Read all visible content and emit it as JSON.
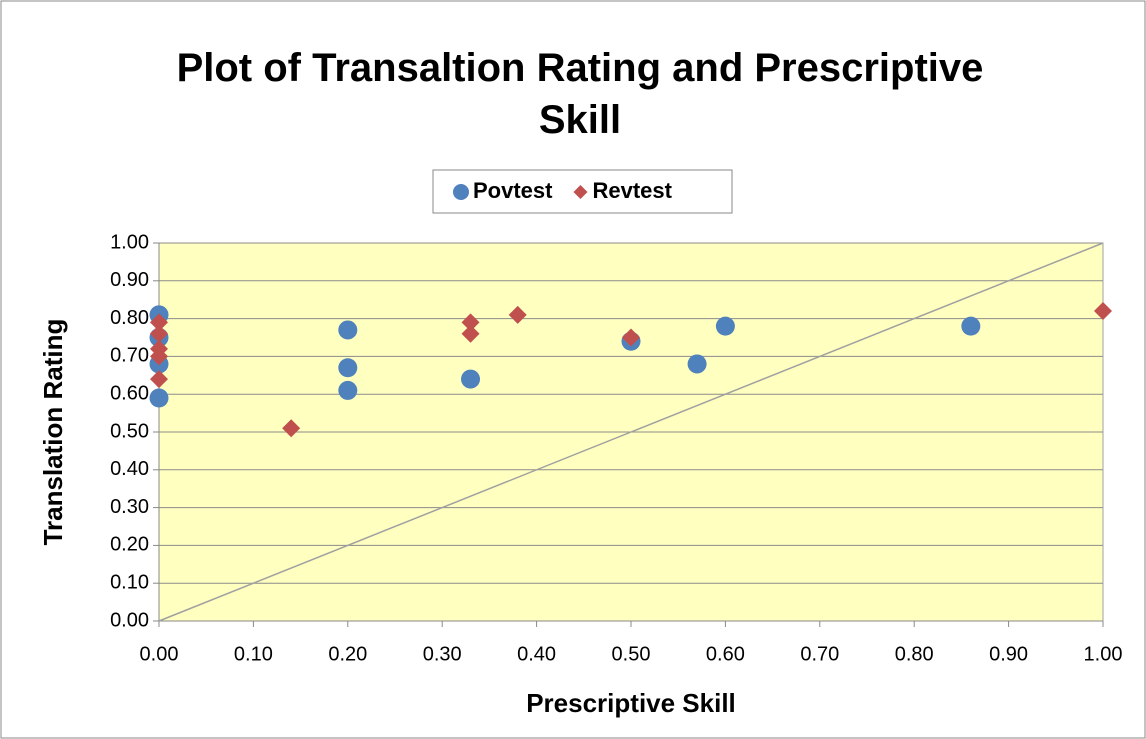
{
  "chart_data": {
    "type": "scatter",
    "title": "Plot of Transaltion Rating and Prescriptive Skill",
    "xlabel": "Prescriptive Skill",
    "ylabel": "Translation Rating",
    "xlim": [
      0,
      1
    ],
    "ylim": [
      0,
      1
    ],
    "xticks": [
      {
        "value": 0,
        "label": "0.00"
      },
      {
        "value": 0.1,
        "label": "0.10"
      },
      {
        "value": 0.2,
        "label": "0.20"
      },
      {
        "value": 0.3,
        "label": "0.30"
      },
      {
        "value": 0.4,
        "label": "0.40"
      },
      {
        "value": 0.5,
        "label": "0.50"
      },
      {
        "value": 0.6,
        "label": "0.60"
      },
      {
        "value": 0.7,
        "label": "0.70"
      },
      {
        "value": 0.8,
        "label": "0.80"
      },
      {
        "value": 0.9,
        "label": "0.90"
      },
      {
        "value": 1,
        "label": "1.00"
      }
    ],
    "yticks": [
      {
        "value": 0,
        "label": "0.00"
      },
      {
        "value": 0.1,
        "label": "0.10"
      },
      {
        "value": 0.2,
        "label": "0.20"
      },
      {
        "value": 0.3,
        "label": "0.30"
      },
      {
        "value": 0.4,
        "label": "0.40"
      },
      {
        "value": 0.5,
        "label": "0.50"
      },
      {
        "value": 0.6,
        "label": "0.60"
      },
      {
        "value": 0.7,
        "label": "0.70"
      },
      {
        "value": 0.8,
        "label": "0.80"
      },
      {
        "value": 0.9,
        "label": "0.90"
      },
      {
        "value": 1,
        "label": "1.00"
      }
    ],
    "grid": true,
    "legend": "top",
    "series": [
      {
        "name": "Povtest",
        "color": "#4f81bd",
        "marker": "circle",
        "x": [
          0,
          0,
          0,
          0,
          0.2,
          0.2,
          0.2,
          0.33,
          0.5,
          0.57,
          0.6,
          0.86
        ],
        "values": [
          0.81,
          0.75,
          0.68,
          0.59,
          0.77,
          0.67,
          0.61,
          0.64,
          0.74,
          0.68,
          0.78,
          0.78
        ]
      },
      {
        "name": "Revtest",
        "color": "#c0504d",
        "marker": "diamond",
        "x": [
          0,
          0,
          0,
          0,
          0,
          0.14,
          0.33,
          0.33,
          0.38,
          0.5,
          1
        ],
        "values": [
          0.79,
          0.76,
          0.72,
          0.7,
          0.64,
          0.51,
          0.79,
          0.76,
          0.81,
          0.75,
          0.82
        ]
      }
    ]
  }
}
